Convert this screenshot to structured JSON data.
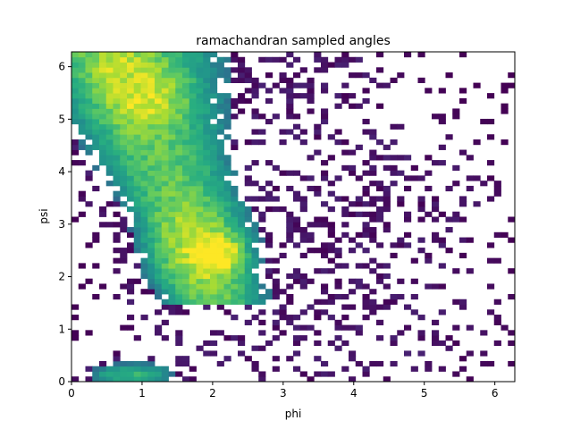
{
  "chart_data": {
    "type": "heatmap",
    "title": "ramachandran sampled angles",
    "xlabel": "phi",
    "ylabel": "psi",
    "xlim": [
      0,
      6.283
    ],
    "ylim": [
      0,
      6.283
    ],
    "xticks": [
      "0",
      "1",
      "2",
      "3",
      "4",
      "5",
      "6"
    ],
    "yticks": [
      "0",
      "1",
      "2",
      "3",
      "4",
      "5",
      "6"
    ],
    "grid": false,
    "bins": [
      64,
      64
    ],
    "colormap": "viridis",
    "empty_bins": "white",
    "density_peaks": [
      {
        "phi": 2.05,
        "psi": 2.42,
        "level": 1.0
      },
      {
        "phi": 1.0,
        "psi": 5.45,
        "level": 0.55
      }
    ]
  }
}
